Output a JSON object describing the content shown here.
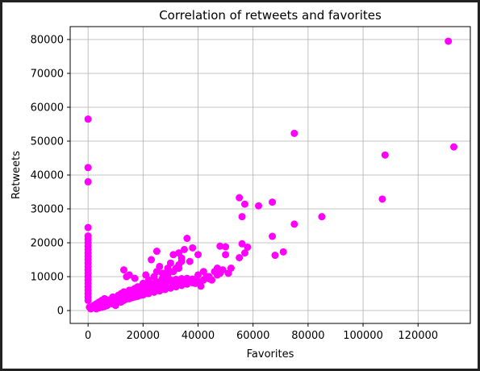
{
  "chart_data": {
    "type": "scatter",
    "title": "Correlation of retweets and favorites",
    "xlabel": "Favorites",
    "ylabel": "Retweets",
    "xlim": [
      -6500,
      139000
    ],
    "ylim": [
      -3800,
      83800
    ],
    "xticks": [
      0,
      20000,
      40000,
      60000,
      80000,
      100000,
      120000
    ],
    "yticks": [
      0,
      10000,
      20000,
      30000,
      40000,
      50000,
      60000,
      70000,
      80000
    ],
    "xtick_labels": [
      "0",
      "20000",
      "40000",
      "60000",
      "80000",
      "100000",
      "120000"
    ],
    "ytick_labels": [
      "0",
      "10000",
      "20000",
      "30000",
      "40000",
      "50000",
      "60000",
      "70000",
      "80000"
    ],
    "grid": true,
    "legend": "none",
    "marker_color": "#ff00ff",
    "series": [
      {
        "x": [
          131000,
          133000,
          108000,
          107000,
          75000,
          75000,
          85000,
          67000,
          62000,
          57000,
          56000,
          55000,
          56000,
          58000,
          55000,
          57000,
          50000,
          48000,
          47000,
          51000,
          50000,
          71000,
          68000,
          67000,
          0,
          0,
          0,
          0,
          0,
          0,
          0,
          0,
          0,
          0,
          0,
          0,
          0,
          0,
          0,
          0,
          0,
          0,
          0,
          0,
          0,
          0,
          0,
          0,
          500,
          1000,
          2000,
          3000,
          4000,
          5000,
          6000,
          7000,
          8000,
          9000,
          10000,
          11000,
          12000,
          13000,
          14000,
          15000,
          16000,
          17000,
          18000,
          19000,
          20000,
          21000,
          22000,
          23000,
          24000,
          25000,
          26000,
          27000,
          28000,
          29000,
          30000,
          31000,
          32000,
          33000,
          34000,
          35000,
          36000,
          37000,
          38000,
          6000,
          8000,
          10000,
          12000,
          14000,
          16000,
          18000,
          20000,
          22000,
          24000,
          26000,
          28000,
          30000,
          32000,
          34000,
          36000,
          38000,
          40000,
          42000,
          44000,
          8000,
          12000,
          16000,
          20000,
          24000,
          28000,
          32000,
          36000,
          40000,
          9000,
          11000,
          15000,
          19000,
          23000,
          27000,
          31000,
          35000,
          13000,
          14000,
          17000,
          21000,
          25000,
          29000,
          33000,
          25000,
          23000,
          26000,
          30000,
          34000,
          35000,
          31000,
          33000,
          37000,
          29000,
          27000,
          40000,
          42000,
          47000,
          45000,
          48000,
          52000,
          44000,
          43000,
          46000,
          49000,
          39000,
          41000,
          36000,
          38000,
          22000,
          18000,
          20000,
          16000,
          24000,
          28000,
          32000,
          34000,
          15000,
          10000,
          12000,
          14000,
          17000,
          19000,
          21000,
          23000,
          25000,
          27000,
          29000,
          31000,
          33000,
          5000,
          7000,
          9000,
          11000,
          13000,
          15000,
          17000,
          19000,
          3000,
          4000,
          6000
        ],
        "y": [
          79500,
          48300,
          45900,
          32900,
          52300,
          25500,
          27700,
          32000,
          30900,
          31400,
          27700,
          33300,
          19700,
          18700,
          15600,
          17000,
          18800,
          19000,
          10500,
          11000,
          16500,
          17300,
          16300,
          21900,
          56500,
          42200,
          38000,
          24500,
          22000,
          21000,
          20000,
          19000,
          18000,
          17000,
          16000,
          15000,
          14000,
          13000,
          12000,
          11000,
          10000,
          9000,
          8000,
          7000,
          6000,
          5000,
          4000,
          3000,
          1000,
          500,
          1500,
          2000,
          2500,
          3000,
          3500,
          2800,
          3200,
          4000,
          3800,
          4500,
          5000,
          5500,
          4800,
          6000,
          5200,
          6500,
          5800,
          7000,
          6200,
          7500,
          6800,
          7200,
          8000,
          7600,
          8200,
          8400,
          7800,
          8600,
          9000,
          8800,
          9200,
          8500,
          9400,
          8700,
          9100,
          8900,
          9300,
          1800,
          2200,
          2600,
          3000,
          3400,
          3800,
          4200,
          4600,
          5000,
          5400,
          5800,
          6200,
          6600,
          7000,
          7400,
          7800,
          8200,
          8600,
          9000,
          9400,
          2500,
          3500,
          4500,
          5500,
          6500,
          7500,
          8500,
          9500,
          10500,
          2000,
          3000,
          4000,
          5000,
          6000,
          7000,
          8000,
          9000,
          12000,
          10000,
          9500,
          10500,
          11500,
          12500,
          13500,
          17500,
          15000,
          13000,
          14000,
          15500,
          18000,
          16500,
          17000,
          14500,
          12000,
          11000,
          16500,
          11500,
          12500,
          9000,
          11000,
          12500,
          10000,
          10000,
          11500,
          12000,
          8000,
          7200,
          21300,
          18500,
          9000,
          7000,
          8000,
          6000,
          10000,
          11000,
          12500,
          14500,
          10500,
          1500,
          2500,
          3500,
          4500,
          5500,
          6500,
          7500,
          8500,
          9500,
          10500,
          11500,
          12500,
          1000,
          1500,
          2000,
          2500,
          3000,
          3500,
          4000,
          4500,
          500,
          800,
          1200
        ]
      }
    ]
  }
}
